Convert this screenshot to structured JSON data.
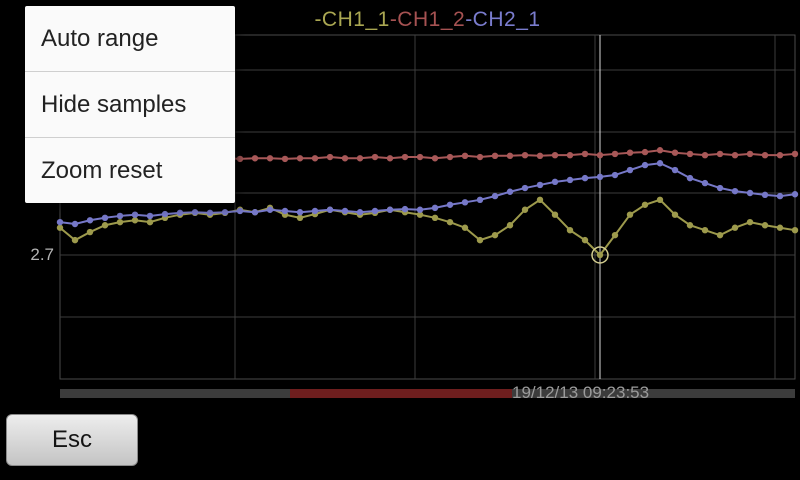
{
  "menu": {
    "items": [
      {
        "label": "Auto range"
      },
      {
        "label": "Hide samples"
      },
      {
        "label": "Zoom reset"
      }
    ]
  },
  "legend": {
    "items": [
      {
        "label": "-CH1_1",
        "color": "#aaa752"
      },
      {
        "label": "-CH1_2",
        "color": "#a65252"
      },
      {
        "label": "-CH2_1",
        "color": "#7a7cce"
      }
    ]
  },
  "esc_button_label": "Esc",
  "chart_data": {
    "type": "line",
    "title": "",
    "xlabel": "",
    "ylabel": "",
    "x_type": "time-samples",
    "grid": true,
    "y_ticks": [
      {
        "value": 2.7,
        "label": "2.7"
      }
    ],
    "y_per_division": 0.1,
    "cursor_time_label": "19/12/13 09:23:53",
    "selected_sample": {
      "series": "CH1_1",
      "index": 36,
      "value": 2.7
    },
    "series": [
      {
        "name": "CH1_1",
        "color": "#9d9a4c",
        "values": [
          2.744,
          2.724,
          2.737,
          2.748,
          2.753,
          2.756,
          2.753,
          2.76,
          2.765,
          2.768,
          2.765,
          2.768,
          2.773,
          2.769,
          2.776,
          2.765,
          2.76,
          2.766,
          2.773,
          2.769,
          2.765,
          2.768,
          2.773,
          2.769,
          2.765,
          2.76,
          2.753,
          2.744,
          2.724,
          2.732,
          2.748,
          2.773,
          2.789,
          2.765,
          2.74,
          2.724,
          2.7,
          2.732,
          2.765,
          2.781,
          2.789,
          2.765,
          2.748,
          2.74,
          2.732,
          2.744,
          2.753,
          2.748,
          2.744,
          2.74
        ]
      },
      {
        "name": "CH1_2",
        "color": "#a85858",
        "values": [
          2.853,
          2.852,
          2.853,
          2.855,
          2.853,
          2.853,
          2.855,
          2.853,
          2.855,
          2.856,
          2.855,
          2.856,
          2.855,
          2.856,
          2.856,
          2.855,
          2.856,
          2.856,
          2.858,
          2.856,
          2.856,
          2.858,
          2.856,
          2.858,
          2.858,
          2.856,
          2.858,
          2.86,
          2.858,
          2.86,
          2.86,
          2.861,
          2.86,
          2.861,
          2.861,
          2.863,
          2.861,
          2.863,
          2.865,
          2.866,
          2.869,
          2.865,
          2.863,
          2.861,
          2.863,
          2.861,
          2.863,
          2.861,
          2.861,
          2.863
        ]
      },
      {
        "name": "CH2_1",
        "color": "#7678c8",
        "values": [
          2.753,
          2.75,
          2.756,
          2.76,
          2.763,
          2.765,
          2.763,
          2.766,
          2.768,
          2.769,
          2.768,
          2.769,
          2.771,
          2.769,
          2.773,
          2.771,
          2.769,
          2.771,
          2.773,
          2.771,
          2.769,
          2.771,
          2.773,
          2.774,
          2.773,
          2.776,
          2.781,
          2.785,
          2.789,
          2.795,
          2.802,
          2.808,
          2.813,
          2.818,
          2.821,
          2.824,
          2.826,
          2.829,
          2.837,
          2.845,
          2.848,
          2.837,
          2.824,
          2.816,
          2.808,
          2.803,
          2.8,
          2.797,
          2.795,
          2.798
        ]
      }
    ]
  }
}
